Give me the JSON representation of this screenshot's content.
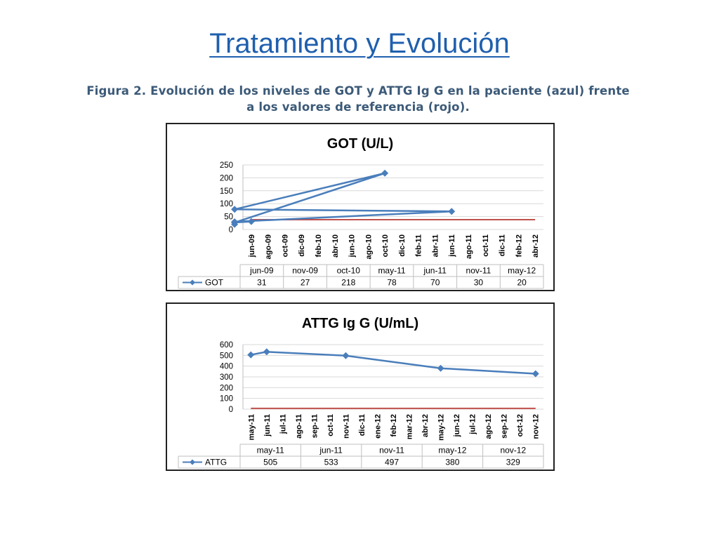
{
  "slide": {
    "title": "Tratamiento y Evolución",
    "caption_line1": "Figura 2. Evolución de los niveles de GOT y ATTG Ig G en la paciente (azul) frente",
    "caption_line2": "a los valores de referencia (rojo)."
  },
  "colors": {
    "series": "#4a7ebb",
    "reference": "#c0504d",
    "grid": "#d9d9d9",
    "axis_text": "#000000"
  },
  "chart_data": [
    {
      "type": "line",
      "title": "GOT (U/L)",
      "ylim": [
        0,
        250
      ],
      "yticks": [
        0,
        50,
        100,
        150,
        200,
        250
      ],
      "grid": true,
      "x_tick_labels": [
        "jun-09",
        "ago-09",
        "oct-09",
        "dic-09",
        "feb-10",
        "abr-10",
        "jun-10",
        "ago-10",
        "oct-10",
        "dic-10",
        "feb-11",
        "abr-11",
        "jun-11",
        "ago-11",
        "oct-11",
        "dic-11",
        "feb-12",
        "abr-12"
      ],
      "reference_value": 38,
      "series": [
        {
          "name": "GOT",
          "x": [
            "jun-09",
            "nov-09",
            "oct-10",
            "may-11",
            "jun-11",
            "nov-11",
            "may-12"
          ],
          "values": [
            31,
            27,
            218,
            78,
            70,
            30,
            20
          ]
        }
      ],
      "table": {
        "headers": [
          "jun-09",
          "nov-09",
          "oct-10",
          "may-11",
          "jun-11",
          "nov-11",
          "may-12"
        ],
        "row_label": "GOT",
        "values": [
          "31",
          "27",
          "218",
          "78",
          "70",
          "30",
          "20"
        ]
      }
    },
    {
      "type": "line",
      "title": "ATTG Ig G (U/mL)",
      "ylim": [
        0,
        600
      ],
      "yticks": [
        0,
        100,
        200,
        300,
        400,
        500,
        600
      ],
      "grid": true,
      "x_tick_labels": [
        "may-11",
        "jun-11",
        "jul-11",
        "ago-11",
        "sep-11",
        "oct-11",
        "nov-11",
        "dic-11",
        "ene-12",
        "feb-12",
        "mar-12",
        "abr-12",
        "may-12",
        "jun-12",
        "jul-12",
        "ago-12",
        "sep-12",
        "oct-12",
        "nov-12"
      ],
      "reference_value": 7,
      "series": [
        {
          "name": "ATTG",
          "x": [
            "may-11",
            "jun-11",
            "nov-11",
            "may-12",
            "nov-12"
          ],
          "values": [
            505,
            533,
            497,
            380,
            329
          ]
        }
      ],
      "table": {
        "headers": [
          "may-11",
          "jun-11",
          "nov-11",
          "may-12",
          "nov-12"
        ],
        "row_label": "ATTG",
        "values": [
          "505",
          "533",
          "497",
          "380",
          "329"
        ]
      }
    }
  ]
}
